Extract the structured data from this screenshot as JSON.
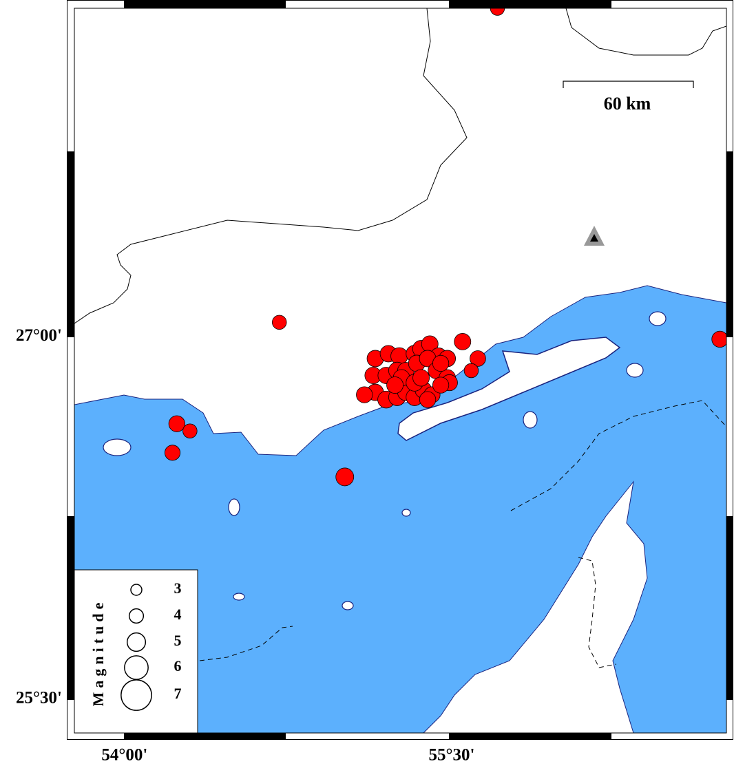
{
  "chart_data": {
    "type": "scatter",
    "xlim": [
      53.77,
      56.76
    ],
    "ylim": [
      25.36,
      28.36
    ],
    "xticks": [
      {
        "value": 54,
        "label": "54°00'"
      },
      {
        "value": 55.5,
        "label": "55°30'"
      }
    ],
    "yticks": [
      {
        "value": 25.5,
        "label": "25°30'"
      },
      {
        "value": 27,
        "label": "27°00'"
      }
    ],
    "series": [
      {
        "color": "#ff0000",
        "x": [
          55.71,
          54.71,
          56.73,
          54.24,
          54.3,
          54.22,
          55.01,
          55.55,
          55.62,
          55.59,
          55.15,
          55.21,
          55.26,
          55.33,
          55.36,
          55.4,
          55.44,
          55.48,
          55.14,
          55.2,
          55.25,
          55.29,
          55.34,
          55.39,
          55.43,
          55.48,
          55.49,
          55.15,
          55.2,
          55.25,
          55.29,
          55.33,
          55.37,
          55.41,
          55.1,
          55.27,
          55.33,
          55.45,
          55.36,
          55.24,
          55.39,
          55.45
        ],
        "values": [
          28.36,
          27.06,
          26.99,
          26.64,
          26.61,
          26.52,
          26.42,
          26.98,
          26.91,
          26.86,
          26.91,
          26.93,
          26.92,
          26.93,
          26.95,
          26.97,
          26.92,
          26.91,
          26.84,
          26.84,
          26.86,
          26.86,
          26.89,
          26.91,
          26.86,
          26.83,
          26.81,
          26.77,
          26.74,
          26.75,
          26.77,
          26.75,
          26.78,
          26.76,
          26.76,
          26.83,
          26.81,
          26.8,
          26.83,
          26.8,
          26.74,
          26.89
        ],
        "sizes": [
          4.0,
          4.0,
          4.5,
          4.5,
          4.0,
          4.3,
          4.9,
          4.6,
          4.4,
          4.0,
          4.6,
          4.6,
          4.7,
          4.7,
          4.7,
          4.6,
          4.6,
          4.6,
          4.6,
          4.6,
          4.7,
          4.6,
          4.6,
          4.6,
          4.6,
          4.6,
          4.5,
          4.6,
          4.7,
          4.7,
          4.6,
          4.7,
          4.6,
          4.5,
          4.5,
          4.6,
          4.7,
          4.5,
          4.6,
          4.6,
          4.5,
          4.5
        ]
      }
    ],
    "legend": {
      "title": "Magnitude",
      "sizes": [
        3,
        4,
        5,
        6,
        7
      ],
      "position": "lower left"
    },
    "scale_bar": {
      "label": "60 km"
    }
  }
}
